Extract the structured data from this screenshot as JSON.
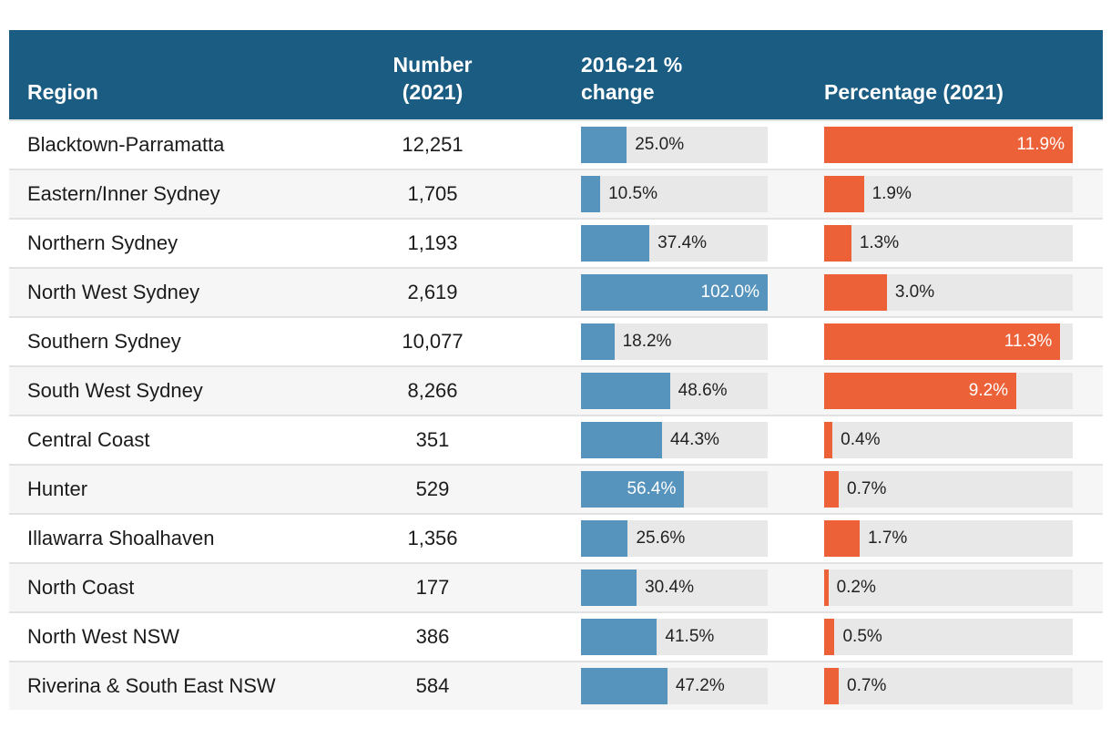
{
  "table": {
    "columns": [
      {
        "key": "region",
        "label": "Region"
      },
      {
        "key": "number",
        "label": "Number (2021)"
      },
      {
        "key": "change",
        "label": "2016-21 % change"
      },
      {
        "key": "pct",
        "label": "Percentage (2021)"
      }
    ],
    "change_axis_max": 102.0,
    "pct_axis_max": 11.9,
    "colors": {
      "header_bg": "#1b5c82",
      "change_bar": "#5794bd",
      "pct_bar": "#ec6137",
      "bar_track": "#e8e8e8",
      "row_alt_bg": "#f6f6f6",
      "divider": "#e2e2e2"
    },
    "rows": [
      {
        "region": "Blacktown-Parramatta",
        "number": "12,251",
        "change_value": 25.0,
        "change_label": "25.0%",
        "pct_value": 11.9,
        "pct_label": "11.9%"
      },
      {
        "region": "Eastern/Inner Sydney",
        "number": "1,705",
        "change_value": 10.5,
        "change_label": "10.5%",
        "pct_value": 1.9,
        "pct_label": "1.9%"
      },
      {
        "region": "Northern Sydney",
        "number": "1,193",
        "change_value": 37.4,
        "change_label": "37.4%",
        "pct_value": 1.3,
        "pct_label": "1.3%"
      },
      {
        "region": "North West Sydney",
        "number": "2,619",
        "change_value": 102.0,
        "change_label": "102.0%",
        "pct_value": 3.0,
        "pct_label": "3.0%"
      },
      {
        "region": "Southern Sydney",
        "number": "10,077",
        "change_value": 18.2,
        "change_label": "18.2%",
        "pct_value": 11.3,
        "pct_label": "11.3%"
      },
      {
        "region": "South West Sydney",
        "number": "8,266",
        "change_value": 48.6,
        "change_label": "48.6%",
        "pct_value": 9.2,
        "pct_label": "9.2%"
      },
      {
        "region": "Central Coast",
        "number": "351",
        "change_value": 44.3,
        "change_label": "44.3%",
        "pct_value": 0.4,
        "pct_label": "0.4%"
      },
      {
        "region": "Hunter",
        "number": "529",
        "change_value": 56.4,
        "change_label": "56.4%",
        "pct_value": 0.7,
        "pct_label": "0.7%"
      },
      {
        "region": "Illawarra Shoalhaven",
        "number": "1,356",
        "change_value": 25.6,
        "change_label": "25.6%",
        "pct_value": 1.7,
        "pct_label": "1.7%"
      },
      {
        "region": "North Coast",
        "number": "177",
        "change_value": 30.4,
        "change_label": "30.4%",
        "pct_value": 0.2,
        "pct_label": "0.2%"
      },
      {
        "region": "North West NSW",
        "number": "386",
        "change_value": 41.5,
        "change_label": "41.5%",
        "pct_value": 0.5,
        "pct_label": "0.5%"
      },
      {
        "region": "Riverina & South East NSW",
        "number": "584",
        "change_value": 47.2,
        "change_label": "47.2%",
        "pct_value": 0.7,
        "pct_label": "0.7%"
      }
    ]
  },
  "chart_data": [
    {
      "type": "bar",
      "orientation": "horizontal",
      "title": "2016-21 % change",
      "categories": [
        "Blacktown-Parramatta",
        "Eastern/Inner Sydney",
        "Northern Sydney",
        "North West Sydney",
        "Southern Sydney",
        "South West Sydney",
        "Central Coast",
        "Hunter",
        "Illawarra Shoalhaven",
        "North Coast",
        "North West NSW",
        "Riverina & South East NSW"
      ],
      "values": [
        25.0,
        10.5,
        37.4,
        102.0,
        18.2,
        48.6,
        44.3,
        56.4,
        25.6,
        30.4,
        41.5,
        47.2
      ],
      "value_suffix": "%",
      "xlim": [
        0,
        102.0
      ],
      "bar_color": "#5794bd",
      "grid": false,
      "legend": false
    },
    {
      "type": "bar",
      "orientation": "horizontal",
      "title": "Percentage (2021)",
      "categories": [
        "Blacktown-Parramatta",
        "Eastern/Inner Sydney",
        "Northern Sydney",
        "North West Sydney",
        "Southern Sydney",
        "South West Sydney",
        "Central Coast",
        "Hunter",
        "Illawarra Shoalhaven",
        "North Coast",
        "North West NSW",
        "Riverina & South East NSW"
      ],
      "values": [
        11.9,
        1.9,
        1.3,
        3.0,
        11.3,
        9.2,
        0.4,
        0.7,
        1.7,
        0.2,
        0.5,
        0.7
      ],
      "value_suffix": "%",
      "xlim": [
        0,
        11.9
      ],
      "bar_color": "#ec6137",
      "grid": false,
      "legend": false
    }
  ]
}
